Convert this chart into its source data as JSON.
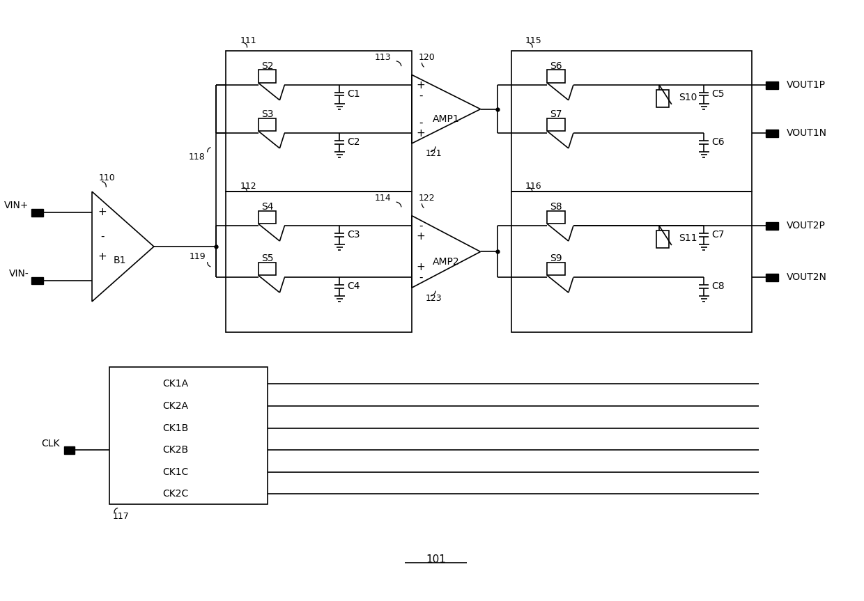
{
  "fig_width": 12.4,
  "fig_height": 8.63,
  "bg_color": "#ffffff",
  "xlim": [
    0,
    124
  ],
  "ylim": [
    0,
    86.3
  ],
  "lw": 1.3,
  "fs": 10,
  "fs_small": 9
}
